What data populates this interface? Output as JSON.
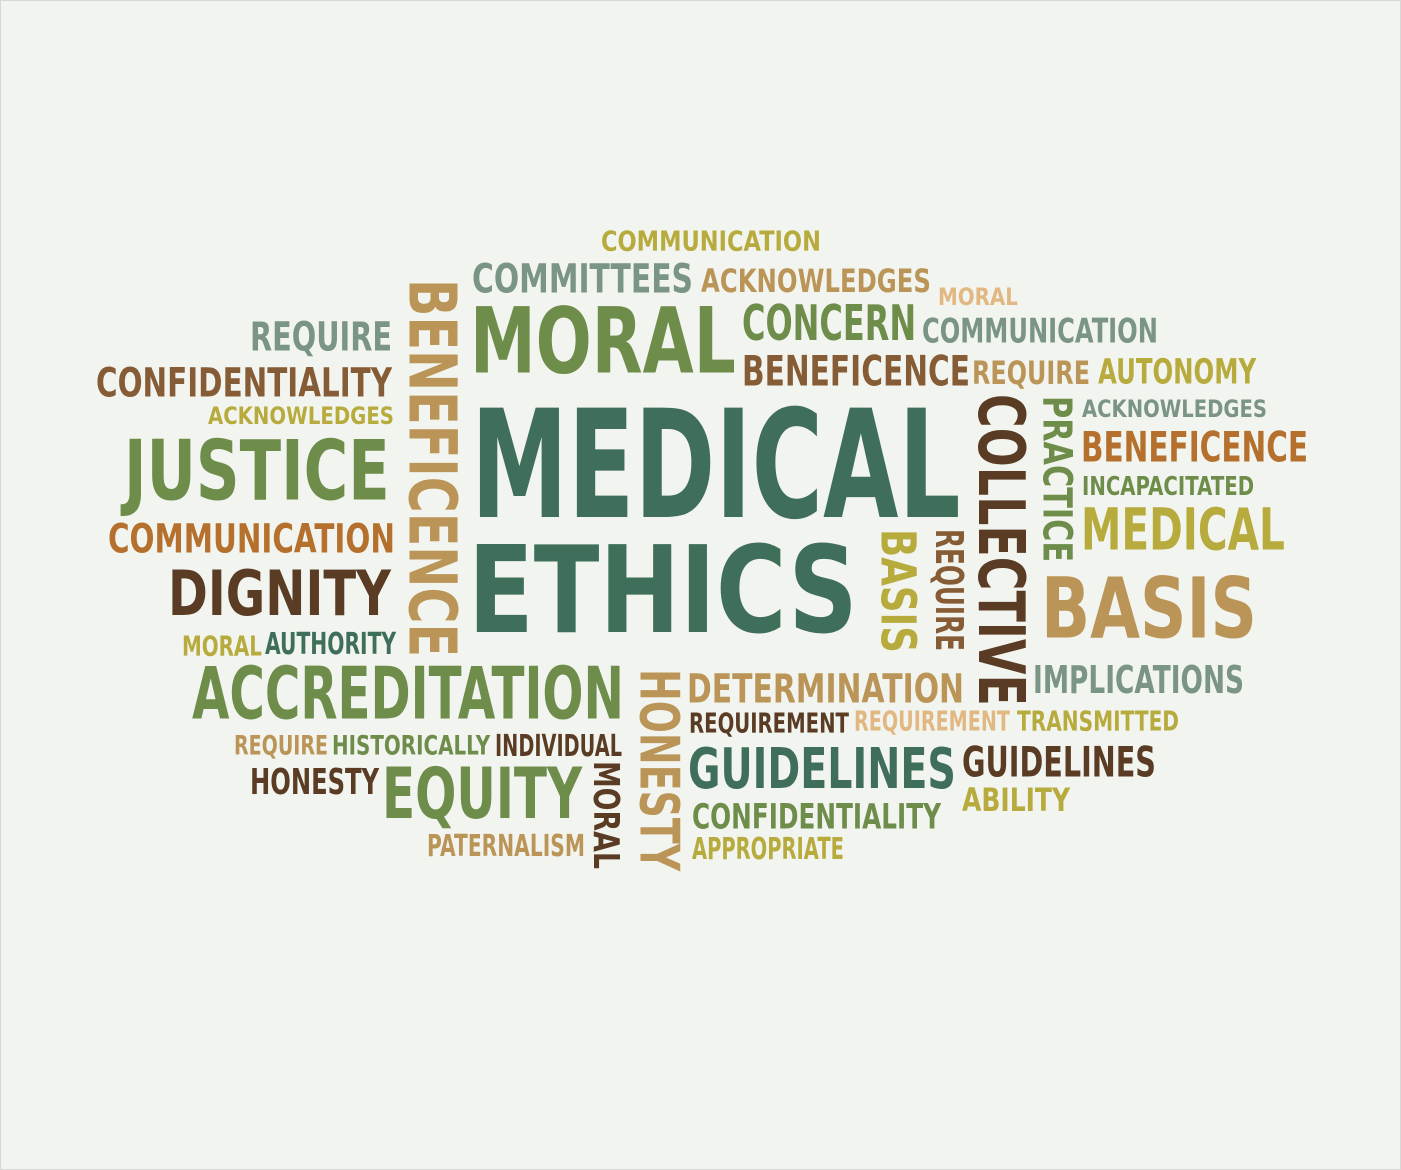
{
  "palette": {
    "dark_teal": "#3f6f5a",
    "olive": "#6e8c4a",
    "sage": "#7a9485",
    "gold": "#b7ab3e",
    "brown": "#855c35",
    "dark_brown": "#5a3c24",
    "tan": "#ba9557",
    "light_tan": "#e2b882",
    "orange": "#b4702c",
    "background": "#f2f4ef"
  },
  "words": [
    {
      "text": "COMMUNICATION",
      "color": "gold",
      "orientation": "horizontal"
    },
    {
      "text": "COMMITTEES",
      "color": "sage",
      "orientation": "horizontal"
    },
    {
      "text": "ACKNOWLEDGES",
      "color": "tan",
      "orientation": "horizontal"
    },
    {
      "text": "MORAL",
      "color": "light_tan",
      "orientation": "horizontal"
    },
    {
      "text": "REQUIRE",
      "color": "sage",
      "orientation": "horizontal"
    },
    {
      "text": "BENEFICENCE",
      "color": "tan",
      "orientation": "vertical-down"
    },
    {
      "text": "MORAL",
      "color": "olive",
      "orientation": "horizontal"
    },
    {
      "text": "CONCERN",
      "color": "olive",
      "orientation": "horizontal"
    },
    {
      "text": "COMMUNICATION",
      "color": "sage",
      "orientation": "horizontal"
    },
    {
      "text": "CONFIDENTIALITY",
      "color": "brown",
      "orientation": "horizontal"
    },
    {
      "text": "BENEFICENCE",
      "color": "brown",
      "orientation": "horizontal"
    },
    {
      "text": "REQUIRE",
      "color": "tan",
      "orientation": "horizontal"
    },
    {
      "text": "AUTONOMY",
      "color": "gold",
      "orientation": "horizontal"
    },
    {
      "text": "ACKNOWLEDGES",
      "color": "gold",
      "orientation": "horizontal"
    },
    {
      "text": "ACKNOWLEDGES",
      "color": "sage",
      "orientation": "horizontal"
    },
    {
      "text": "JUSTICE",
      "color": "olive",
      "orientation": "horizontal"
    },
    {
      "text": "MEDICAL",
      "color": "dark_teal",
      "orientation": "horizontal"
    },
    {
      "text": "COLLECTIVE",
      "color": "dark_brown",
      "orientation": "vertical-down"
    },
    {
      "text": "PRACTICE",
      "color": "olive",
      "orientation": "vertical-down"
    },
    {
      "text": "BENEFICENCE",
      "color": "orange",
      "orientation": "horizontal"
    },
    {
      "text": "INCAPACITATED",
      "color": "olive",
      "orientation": "horizontal"
    },
    {
      "text": "COMMUNICATION",
      "color": "orange",
      "orientation": "horizontal"
    },
    {
      "text": "MEDICAL",
      "color": "gold",
      "orientation": "horizontal"
    },
    {
      "text": "DIGNITY",
      "color": "dark_brown",
      "orientation": "horizontal"
    },
    {
      "text": "ETHICS",
      "color": "dark_teal",
      "orientation": "horizontal"
    },
    {
      "text": "BASIS",
      "color": "gold",
      "orientation": "vertical-down"
    },
    {
      "text": "REQUIRE",
      "color": "brown",
      "orientation": "vertical-down"
    },
    {
      "text": "BASIS",
      "color": "tan",
      "orientation": "horizontal"
    },
    {
      "text": "MORAL",
      "color": "gold",
      "orientation": "horizontal"
    },
    {
      "text": "AUTHORITY",
      "color": "dark_teal",
      "orientation": "horizontal"
    },
    {
      "text": "ACCREDITATION",
      "color": "olive",
      "orientation": "horizontal"
    },
    {
      "text": "HONESTY",
      "color": "tan",
      "orientation": "vertical-down"
    },
    {
      "text": "DETERMINATION",
      "color": "tan",
      "orientation": "horizontal"
    },
    {
      "text": "IMPLICATIONS",
      "color": "sage",
      "orientation": "horizontal"
    },
    {
      "text": "REQUIREMENT",
      "color": "dark_brown",
      "orientation": "horizontal"
    },
    {
      "text": "REQUIREMENT",
      "color": "light_tan",
      "orientation": "horizontal"
    },
    {
      "text": "TRANSMITTED",
      "color": "gold",
      "orientation": "horizontal"
    },
    {
      "text": "REQUIRE",
      "color": "tan",
      "orientation": "horizontal"
    },
    {
      "text": "HISTORICALLY",
      "color": "olive",
      "orientation": "horizontal"
    },
    {
      "text": "INDIVIDUAL",
      "color": "dark_brown",
      "orientation": "horizontal"
    },
    {
      "text": "HONESTY",
      "color": "dark_brown",
      "orientation": "horizontal"
    },
    {
      "text": "EQUITY",
      "color": "olive",
      "orientation": "horizontal"
    },
    {
      "text": "MORAL",
      "color": "dark_brown",
      "orientation": "vertical-down"
    },
    {
      "text": "GUIDELINES",
      "color": "dark_teal",
      "orientation": "horizontal"
    },
    {
      "text": "GUIDELINES",
      "color": "dark_brown",
      "orientation": "horizontal"
    },
    {
      "text": "CONFIDENTIALITY",
      "color": "olive",
      "orientation": "horizontal"
    },
    {
      "text": "ABILITY",
      "color": "gold",
      "orientation": "horizontal"
    },
    {
      "text": "PATERNALISM",
      "color": "tan",
      "orientation": "horizontal"
    },
    {
      "text": "APPROPRIATE",
      "color": "gold",
      "orientation": "horizontal"
    }
  ]
}
